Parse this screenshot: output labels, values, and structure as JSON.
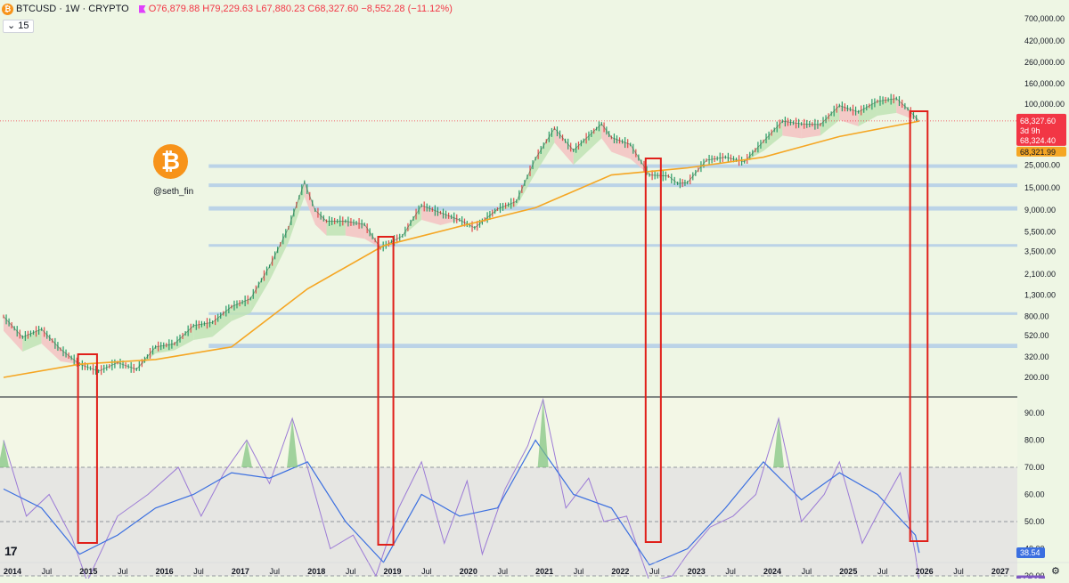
{
  "header": {
    "symbol": "BTCUSD · 1W · CRYPTO",
    "open": "O76,879.88",
    "high": "H79,229.63",
    "low": "L67,880.23",
    "close": "C68,327.60",
    "change": "−8,552.28 (−11.12%)",
    "indicator_label": "15"
  },
  "watermark": {
    "handle": "@seth_fin"
  },
  "colors": {
    "ema": "#f5a623",
    "rsi": "#9c7bd6",
    "rsi_ma": "#3b6fe0",
    "highlight_box": "#e0201a",
    "support_band": "#a9c7e8",
    "bull_band": "#bfe3b5",
    "bear_band": "#f3c2c2"
  },
  "chart_data": [
    {
      "type": "line",
      "title": "BTCUSD 1W",
      "scale": "log",
      "x_ticks": [
        "2014",
        "Jul",
        "2015",
        "Jul",
        "2016",
        "Jul",
        "2017",
        "Jul",
        "2018",
        "Jul",
        "2019",
        "Jul",
        "2020",
        "Jul",
        "2021",
        "Jul",
        "2022",
        "Jul",
        "2023",
        "Jul",
        "2024",
        "Jul",
        "2025",
        "Jul",
        "2026",
        "Jul",
        "2027"
      ],
      "y_ticks": [
        "700,000.00",
        "420,000.00",
        "260,000.00",
        "160,000.00",
        "100,000.00",
        "25,000.00",
        "15,000.00",
        "9,000.00",
        "5,500.00",
        "3,500.00",
        "2,100.00",
        "1,300.00",
        "800.00",
        "520.00",
        "320.00",
        "200.00"
      ],
      "series": [
        {
          "values_x": [
            2014.0,
            2014.25,
            2014.5,
            2014.75,
            2015.0,
            2015.25,
            2015.5,
            2015.75,
            2016.0,
            2016.25,
            2016.5,
            2016.75,
            2017.0,
            2017.25,
            2017.5,
            2017.75,
            2017.96,
            2018.1,
            2018.25,
            2018.5,
            2018.75,
            2018.96,
            2019.25,
            2019.5,
            2019.75,
            2020.0,
            2020.2,
            2020.5,
            2020.75,
            2021.0,
            2021.25,
            2021.5,
            2021.87,
            2022.0,
            2022.25,
            2022.5,
            2022.75,
            2022.87,
            2023.0,
            2023.25,
            2023.5,
            2023.75,
            2024.0,
            2024.25,
            2024.5,
            2024.75,
            2025.0,
            2025.25,
            2025.5,
            2025.75,
            2025.9,
            2026.05
          ],
          "values": [
            800,
            500,
            600,
            380,
            270,
            230,
            280,
            240,
            400,
            430,
            650,
            700,
            1000,
            1200,
            2500,
            6000,
            17000,
            9000,
            7000,
            7000,
            6500,
            3800,
            5000,
            10000,
            8500,
            7200,
            6000,
            9200,
            11000,
            29000,
            58000,
            35000,
            64000,
            47000,
            40000,
            20000,
            19500,
            16500,
            16800,
            28000,
            30000,
            27000,
            43000,
            68000,
            64000,
            63000,
            97000,
            84000,
            107000,
            114000,
            90000,
            68000
          ]
        }
      ],
      "ema_200w": {
        "values_x": [
          2014.0,
          2015.0,
          2016.0,
          2017.0,
          2018.0,
          2019.0,
          2020.0,
          2021.0,
          2022.0,
          2023.0,
          2024.0,
          2025.0,
          2026.05
        ],
        "values": [
          200,
          270,
          300,
          400,
          1500,
          4000,
          6200,
          9500,
          20000,
          23500,
          30000,
          48000,
          68000
        ]
      },
      "price_labels": [
        "68,327.60",
        "3d 9h",
        "68,324.40",
        "68,321.99"
      ],
      "support_zones": [
        [
          "23,500",
          "25,500"
        ],
        [
          "15,200",
          "16,500"
        ],
        [
          "8,900",
          "9,800"
        ],
        [
          "4,000",
          "4,150"
        ],
        [
          "830",
          "880"
        ],
        [
          "390",
          "430"
        ]
      ]
    },
    {
      "type": "line",
      "title": "RSI",
      "y_ticks": [
        "90.00",
        "80.00",
        "70.00",
        "60.00",
        "50.00",
        "40.00",
        "30.00",
        "20.00"
      ],
      "levels": [
        30,
        50,
        70
      ],
      "series": [
        {
          "name": "RSI",
          "values_x": [
            2014.0,
            2014.3,
            2014.6,
            2014.9,
            2015.1,
            2015.5,
            2015.9,
            2016.3,
            2016.6,
            2016.9,
            2017.2,
            2017.5,
            2017.8,
            2018.0,
            2018.3,
            2018.6,
            2018.9,
            2019.2,
            2019.5,
            2019.8,
            2020.1,
            2020.3,
            2020.6,
            2020.9,
            2021.1,
            2021.4,
            2021.7,
            2021.9,
            2022.2,
            2022.5,
            2022.8,
            2023.0,
            2023.3,
            2023.6,
            2023.9,
            2024.2,
            2024.5,
            2024.8,
            2025.0,
            2025.3,
            2025.6,
            2025.8,
            2026.0,
            2026.05
          ],
          "values": [
            80,
            52,
            60,
            44,
            28,
            52,
            60,
            70,
            52,
            68,
            80,
            64,
            88,
            70,
            40,
            45,
            30,
            55,
            72,
            42,
            65,
            38,
            62,
            78,
            95,
            55,
            66,
            50,
            52,
            28,
            30,
            38,
            48,
            52,
            60,
            88,
            50,
            60,
            72,
            42,
            58,
            68,
            38,
            28
          ]
        },
        {
          "name": "RSI MA",
          "values_x": [
            2014.0,
            2014.5,
            2015.0,
            2015.5,
            2016.0,
            2016.5,
            2017.0,
            2017.5,
            2018.0,
            2018.5,
            2019.0,
            2019.5,
            2020.0,
            2020.5,
            2021.0,
            2021.5,
            2022.0,
            2022.5,
            2023.0,
            2023.5,
            2024.0,
            2024.5,
            2025.0,
            2025.5,
            2026.0,
            2026.05
          ],
          "values": [
            62,
            55,
            38,
            45,
            55,
            60,
            68,
            66,
            72,
            50,
            35,
            60,
            52,
            55,
            80,
            60,
            55,
            34,
            40,
            55,
            72,
            58,
            68,
            60,
            45,
            38.5
          ]
        }
      ],
      "value_labels": [
        "38.54",
        "28.21"
      ]
    }
  ]
}
